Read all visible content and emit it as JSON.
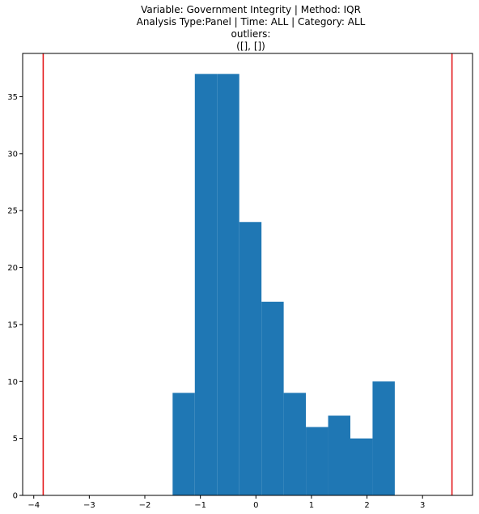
{
  "chart_data": {
    "type": "bar",
    "title_lines": [
      "Variable: Government Integrity | Method: IQR",
      "Analysis Type:Panel | Time: ALL | Category: ALL",
      "outliers:",
      "([], [])"
    ],
    "xlabel": "",
    "ylabel": "",
    "xlim": [
      -4.2,
      3.9
    ],
    "ylim": [
      0,
      38.8
    ],
    "x_ticks": [
      -4,
      -3,
      -2,
      -1,
      0,
      1,
      2,
      3
    ],
    "x_tick_labels": [
      "−4",
      "−3",
      "−2",
      "−1",
      "0",
      "1",
      "2",
      "3"
    ],
    "y_ticks": [
      0,
      5,
      10,
      15,
      20,
      25,
      30,
      35
    ],
    "y_tick_labels": [
      "0",
      "5",
      "10",
      "15",
      "20",
      "25",
      "30",
      "35"
    ],
    "bins": [
      {
        "left": -1.5,
        "right": -1.1,
        "count": 9
      },
      {
        "left": -1.1,
        "right": -0.7,
        "count": 37
      },
      {
        "left": -0.7,
        "right": -0.3,
        "count": 37
      },
      {
        "left": -0.3,
        "right": 0.1,
        "count": 24
      },
      {
        "left": 0.1,
        "right": 0.5,
        "count": 17
      },
      {
        "left": 0.5,
        "right": 0.9,
        "count": 9
      },
      {
        "left": 0.9,
        "right": 1.3,
        "count": 6
      },
      {
        "left": 1.3,
        "right": 1.7,
        "count": 7
      },
      {
        "left": 1.7,
        "right": 2.1,
        "count": 5
      },
      {
        "left": 2.1,
        "right": 2.5,
        "count": 10
      }
    ],
    "lower_fence": -3.83,
    "upper_fence": 3.53,
    "bar_color": "#1f77b4",
    "fence_color": "#e41a1c",
    "grid": false,
    "legend": "none"
  }
}
